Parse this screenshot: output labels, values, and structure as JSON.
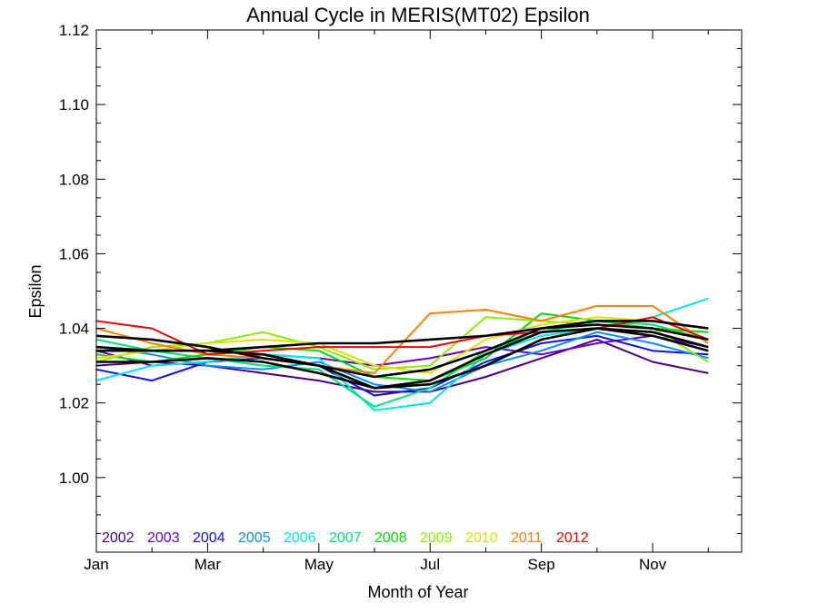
{
  "chart_data": {
    "type": "line",
    "title": "Annual Cycle in MERIS(MT02) Epsilon",
    "xlabel": "Month of Year",
    "ylabel": "Epsilon",
    "xlim": [
      1,
      12.6
    ],
    "ylim": [
      0.98,
      1.12
    ],
    "x_ticks": [
      {
        "value": 1,
        "label": "Jan"
      },
      {
        "value": 3,
        "label": "Mar"
      },
      {
        "value": 5,
        "label": "May"
      },
      {
        "value": 7,
        "label": "Jul"
      },
      {
        "value": 9,
        "label": "Sep"
      },
      {
        "value": 11,
        "label": "Nov"
      }
    ],
    "y_ticks": [
      {
        "value": 1.0,
        "label": "1.00"
      },
      {
        "value": 1.02,
        "label": "1.02"
      },
      {
        "value": 1.04,
        "label": "1.04"
      },
      {
        "value": 1.06,
        "label": "1.06"
      },
      {
        "value": 1.08,
        "label": "1.08"
      },
      {
        "value": 1.1,
        "label": "1.10"
      },
      {
        "value": 1.12,
        "label": "1.12"
      }
    ],
    "y_minor_step": 0.005,
    "grid": false,
    "legend_position": "bottom-left",
    "x": [
      1,
      2,
      3,
      4,
      5,
      6,
      7,
      8,
      9,
      10,
      11,
      12
    ],
    "series": [
      {
        "name": "2002",
        "color": "#4b0082",
        "values": [
          1.03,
          1.031,
          1.03,
          1.028,
          1.026,
          1.023,
          1.023,
          1.027,
          1.032,
          1.037,
          1.031,
          1.028
        ]
      },
      {
        "name": "2003",
        "color": "#6a00cc",
        "values": [
          1.034,
          1.03,
          1.031,
          1.033,
          1.032,
          1.03,
          1.032,
          1.035,
          1.033,
          1.036,
          1.038,
          1.035
        ]
      },
      {
        "name": "2004",
        "color": "#1010e0",
        "values": [
          1.029,
          1.026,
          1.031,
          1.032,
          1.03,
          1.022,
          1.024,
          1.031,
          1.036,
          1.038,
          1.034,
          1.033
        ]
      },
      {
        "name": "2005",
        "color": "#0a8cff",
        "values": [
          1.035,
          1.033,
          1.03,
          1.029,
          1.031,
          1.025,
          1.023,
          1.03,
          1.034,
          1.039,
          1.036,
          1.032
        ]
      },
      {
        "name": "2006",
        "color": "#00e5e5",
        "values": [
          1.026,
          1.03,
          1.031,
          1.033,
          1.032,
          1.018,
          1.02,
          1.033,
          1.038,
          1.04,
          1.043,
          1.048
        ]
      },
      {
        "name": "2007",
        "color": "#00e07a",
        "values": [
          1.037,
          1.034,
          1.032,
          1.03,
          1.029,
          1.019,
          1.024,
          1.034,
          1.039,
          1.042,
          1.041,
          1.037
        ]
      },
      {
        "name": "2008",
        "color": "#00dd00",
        "values": [
          1.033,
          1.031,
          1.033,
          1.035,
          1.034,
          1.027,
          1.026,
          1.032,
          1.044,
          1.042,
          1.04,
          1.039
        ]
      },
      {
        "name": "2009",
        "color": "#88ee00",
        "values": [
          1.031,
          1.035,
          1.036,
          1.039,
          1.035,
          1.029,
          1.03,
          1.043,
          1.042,
          1.041,
          1.04,
          1.031
        ]
      },
      {
        "name": "2010",
        "color": "#e0e000",
        "values": [
          1.032,
          1.034,
          1.036,
          1.037,
          1.036,
          1.03,
          1.028,
          1.037,
          1.041,
          1.043,
          1.042,
          1.04
        ]
      },
      {
        "name": "2011",
        "color": "#ff8000",
        "values": [
          1.04,
          1.036,
          1.033,
          1.032,
          1.03,
          1.028,
          1.044,
          1.045,
          1.042,
          1.046,
          1.046,
          1.036
        ]
      },
      {
        "name": "2012",
        "color": "#ee0000",
        "values": [
          1.042,
          1.04,
          1.033,
          1.034,
          1.035,
          1.035,
          1.035,
          1.038,
          1.039,
          1.04,
          1.043,
          1.037
        ]
      },
      {
        "color": "#000000",
        "width": 2.6,
        "values": [
          1.035,
          1.034,
          1.034,
          1.033,
          1.03,
          1.024,
          1.026,
          1.033,
          1.039,
          1.04,
          1.039,
          1.035
        ]
      },
      {
        "color": "#000000",
        "width": 2.6,
        "values": [
          1.038,
          1.037,
          1.035,
          1.032,
          1.03,
          1.027,
          1.029,
          1.034,
          1.04,
          1.041,
          1.04,
          1.037
        ]
      },
      {
        "color": "#000000",
        "width": 2.6,
        "values": [
          1.031,
          1.031,
          1.032,
          1.031,
          1.028,
          1.024,
          1.025,
          1.03,
          1.037,
          1.04,
          1.038,
          1.034
        ]
      },
      {
        "color": "#000000",
        "width": 2.6,
        "values": [
          1.034,
          1.034,
          1.034,
          1.035,
          1.036,
          1.036,
          1.037,
          1.038,
          1.04,
          1.042,
          1.042,
          1.04
        ]
      }
    ]
  }
}
